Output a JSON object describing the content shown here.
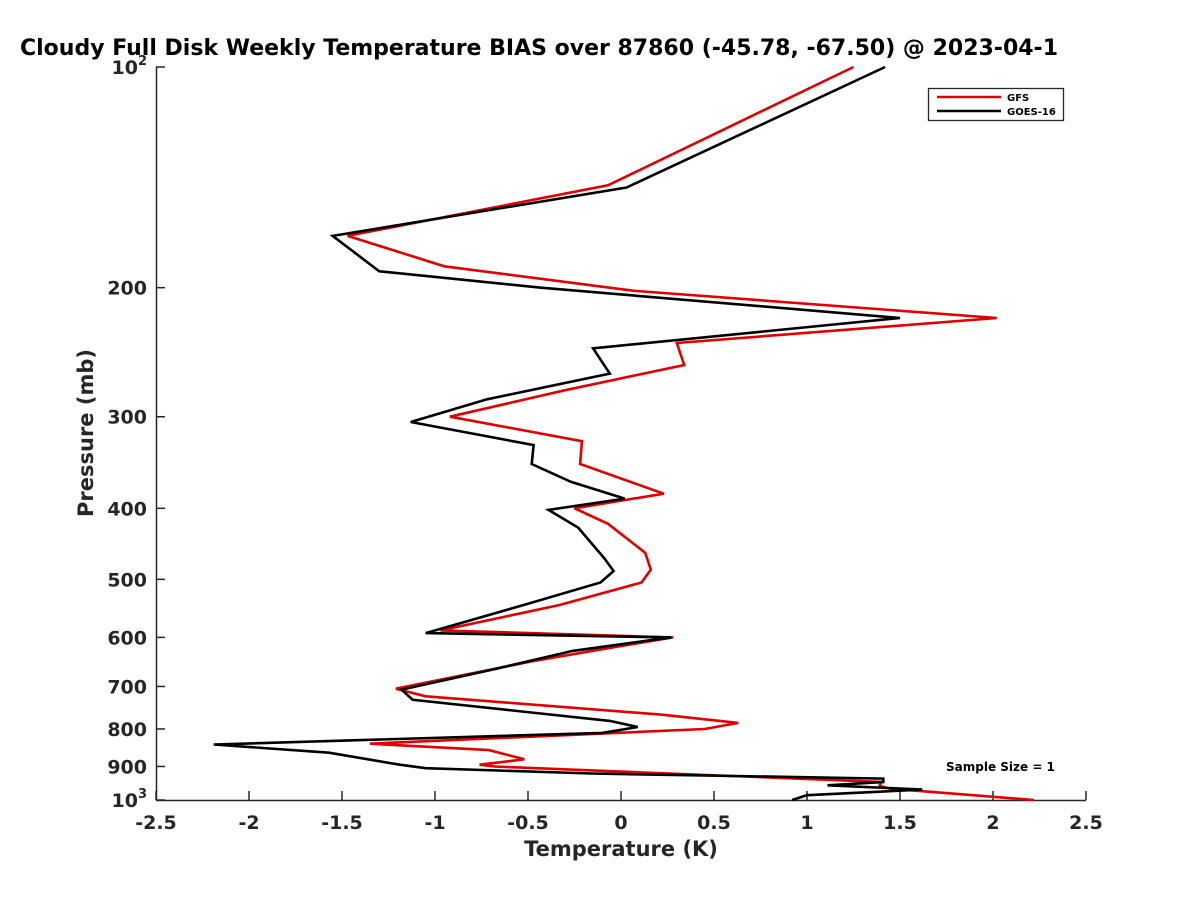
{
  "chart_data": {
    "type": "line",
    "title": "Cloudy Full Disk Weekly Temperature BIAS over 87860 (-45.78, -67.50) @ 2023-04-1",
    "xlabel": "Temperature (K)",
    "ylabel": "Pressure (mb)",
    "xlim": [
      -2.5,
      2.5
    ],
    "ylim": [
      100,
      1000
    ],
    "y_scale": "log",
    "y_reversed": true,
    "x_ticks": [
      "-2.5",
      "-2",
      "-1.5",
      "-1",
      "-0.5",
      "0",
      "0.5",
      "1",
      "1.5",
      "2",
      "2.5"
    ],
    "y_ticks": [
      {
        "value": 100,
        "base": "10",
        "exp": "2"
      },
      {
        "value": 200,
        "label": "200"
      },
      {
        "value": 300,
        "label": "300"
      },
      {
        "value": 400,
        "label": "400"
      },
      {
        "value": 500,
        "label": "500"
      },
      {
        "value": 600,
        "label": "600"
      },
      {
        "value": 700,
        "label": "700"
      },
      {
        "value": 800,
        "label": "800"
      },
      {
        "value": 900,
        "label": "900"
      },
      {
        "value": 1000,
        "base": "10",
        "exp": "3"
      }
    ],
    "grid": false,
    "legend_position": "top-right",
    "annotation": "Sample Size = 1",
    "series": [
      {
        "name": "GFS",
        "color": "#e00000",
        "points": [
          [
            1.25,
            100
          ],
          [
            -0.07,
            145
          ],
          [
            -1.47,
            170
          ],
          [
            -0.95,
            187
          ],
          [
            0.07,
            202
          ],
          [
            2.02,
            220
          ],
          [
            0.3,
            238
          ],
          [
            0.34,
            255
          ],
          [
            -0.3,
            276
          ],
          [
            -0.92,
            300
          ],
          [
            -0.21,
            324
          ],
          [
            -0.22,
            348
          ],
          [
            0.23,
            382
          ],
          [
            -0.25,
            400
          ],
          [
            -0.07,
            420
          ],
          [
            0.13,
            460
          ],
          [
            0.16,
            485
          ],
          [
            0.11,
            505
          ],
          [
            -0.33,
            542
          ],
          [
            -0.97,
            587
          ],
          [
            0.28,
            600
          ],
          [
            -0.09,
            622
          ],
          [
            -0.48,
            647
          ],
          [
            -1.21,
            705
          ],
          [
            -1.05,
            722
          ],
          [
            0.22,
            765
          ],
          [
            0.63,
            785
          ],
          [
            0.45,
            800
          ],
          [
            -1.35,
            838
          ],
          [
            -0.71,
            855
          ],
          [
            -0.52,
            880
          ],
          [
            -0.76,
            895
          ],
          [
            -0.68,
            900
          ],
          [
            1.4,
            945
          ],
          [
            1.39,
            957
          ],
          [
            1.45,
            965
          ],
          [
            2.22,
            1000
          ]
        ]
      },
      {
        "name": "GOES-16",
        "color": "#000000",
        "points": [
          [
            1.42,
            100
          ],
          [
            0.03,
            146
          ],
          [
            -1.55,
            170
          ],
          [
            -1.3,
            190
          ],
          [
            -0.43,
            200
          ],
          [
            1.5,
            220
          ],
          [
            -0.15,
            242
          ],
          [
            -0.06,
            262
          ],
          [
            -0.72,
            284
          ],
          [
            -1.13,
            305
          ],
          [
            -0.47,
            328
          ],
          [
            -0.48,
            348
          ],
          [
            -0.27,
            368
          ],
          [
            0.02,
            388
          ],
          [
            -0.39,
            402
          ],
          [
            -0.23,
            425
          ],
          [
            -0.09,
            468
          ],
          [
            -0.04,
            487
          ],
          [
            -0.11,
            505
          ],
          [
            -0.5,
            540
          ],
          [
            -1.05,
            592
          ],
          [
            0.27,
            600
          ],
          [
            -0.26,
            626
          ],
          [
            -0.67,
            662
          ],
          [
            -1.18,
            707
          ],
          [
            -1.12,
            730
          ],
          [
            -0.06,
            780
          ],
          [
            0.09,
            795
          ],
          [
            -0.1,
            810
          ],
          [
            -2.19,
            840
          ],
          [
            -1.57,
            862
          ],
          [
            -1.19,
            895
          ],
          [
            -1.05,
            905
          ],
          [
            -0.16,
            920
          ],
          [
            1.41,
            935
          ],
          [
            1.41,
            945
          ],
          [
            1.11,
            955
          ],
          [
            1.62,
            968
          ],
          [
            1.0,
            985
          ],
          [
            0.92,
            1000
          ]
        ]
      }
    ]
  }
}
